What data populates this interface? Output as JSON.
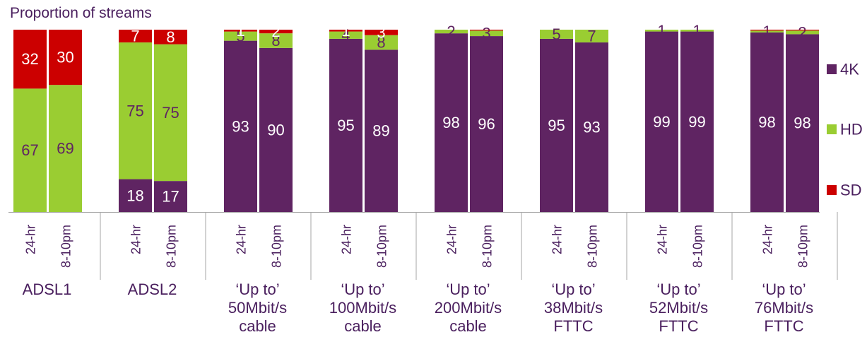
{
  "chart_data": {
    "type": "bar",
    "stacked": true,
    "title": "Proportion of streams",
    "ylim": [
      0,
      100
    ],
    "legend_position": "right",
    "colors": {
      "4K": "#5f2462",
      "HD": "#9acd32",
      "SD": "#cc0000"
    },
    "label_colors": {
      "4K": "#ffffff",
      "HD": "#5f2462",
      "SD": "#ffffff"
    },
    "groups": [
      {
        "label_lines": [
          "ADSL1"
        ],
        "bars": [
          {
            "tick": "24-hr",
            "4K": 0,
            "HD": 67,
            "SD": 32,
            "labels": {
              "4K": "",
              "HD": "67",
              "SD": "32"
            }
          },
          {
            "tick": "8-10pm",
            "4K": 0,
            "HD": 69,
            "SD": 30,
            "labels": {
              "4K": "",
              "HD": "69",
              "SD": "30"
            }
          }
        ]
      },
      {
        "label_lines": [
          "ADSL2"
        ],
        "bars": [
          {
            "tick": "24-hr",
            "4K": 18,
            "HD": 75,
            "SD": 7,
            "labels": {
              "4K": "18",
              "HD": "75",
              "SD": "7"
            }
          },
          {
            "tick": "8-10pm",
            "4K": 17,
            "HD": 75,
            "SD": 8,
            "labels": {
              "4K": "17",
              "HD": "75",
              "SD": "8"
            }
          }
        ]
      },
      {
        "label_lines": [
          "‘Up to’",
          "50Mbit/s",
          "cable"
        ],
        "bars": [
          {
            "tick": "24-hr",
            "4K": 93,
            "HD": 5,
            "SD": 1,
            "labels": {
              "4K": "93",
              "HD": "5",
              "SD": "1"
            }
          },
          {
            "tick": "8-10pm",
            "4K": 90,
            "HD": 8,
            "SD": 2,
            "labels": {
              "4K": "90",
              "HD": "8",
              "SD": "2"
            }
          }
        ]
      },
      {
        "label_lines": [
          "‘Up to’",
          "100Mbit/s",
          "cable"
        ],
        "bars": [
          {
            "tick": "24-hr",
            "4K": 95,
            "HD": 4,
            "SD": 1,
            "labels": {
              "4K": "95",
              "HD": "4",
              "SD": "1"
            }
          },
          {
            "tick": "8-10pm",
            "4K": 89,
            "HD": 8,
            "SD": 3,
            "labels": {
              "4K": "89",
              "HD": "8",
              "SD": "3"
            }
          }
        ]
      },
      {
        "label_lines": [
          "‘Up to’",
          "200Mbit/s",
          "cable"
        ],
        "bars": [
          {
            "tick": "24-hr",
            "4K": 98,
            "HD": 2,
            "SD": 0,
            "labels": {
              "4K": "98",
              "HD": "2",
              "SD": ""
            }
          },
          {
            "tick": "8-10pm",
            "4K": 96,
            "HD": 3,
            "SD": 0.5,
            "labels": {
              "4K": "96",
              "HD": "3",
              "SD": ""
            }
          }
        ]
      },
      {
        "label_lines": [
          "‘Up to’",
          "38Mbit/s",
          "FTTC"
        ],
        "bars": [
          {
            "tick": "24-hr",
            "4K": 95,
            "HD": 5,
            "SD": 0,
            "labels": {
              "4K": "95",
              "HD": "5",
              "SD": ""
            }
          },
          {
            "tick": "8-10pm",
            "4K": 93,
            "HD": 7,
            "SD": 0,
            "labels": {
              "4K": "93",
              "HD": "7",
              "SD": ""
            }
          }
        ]
      },
      {
        "label_lines": [
          "‘Up to’",
          "52Mbit/s",
          "FTTC"
        ],
        "bars": [
          {
            "tick": "24-hr",
            "4K": 99,
            "HD": 1,
            "SD": 0,
            "labels": {
              "4K": "99",
              "HD": "1",
              "SD": ""
            }
          },
          {
            "tick": "8-10pm",
            "4K": 99,
            "HD": 1,
            "SD": 0,
            "labels": {
              "4K": "99",
              "HD": "1",
              "SD": ""
            }
          }
        ]
      },
      {
        "label_lines": [
          "‘Up to’",
          "76Mbit/s",
          "FTTC"
        ],
        "bars": [
          {
            "tick": "24-hr",
            "4K": 98,
            "HD": 1,
            "SD": 0.5,
            "labels": {
              "4K": "98",
              "HD": "1",
              "SD": ""
            }
          },
          {
            "tick": "8-10pm",
            "4K": 98,
            "HD": 2,
            "SD": 0.5,
            "labels": {
              "4K": "98",
              "HD": "2",
              "SD": ""
            }
          }
        ]
      }
    ],
    "legend": [
      {
        "key": "4K",
        "label": "4K"
      },
      {
        "key": "HD",
        "label": "HD"
      },
      {
        "key": "SD",
        "label": "SD"
      }
    ]
  }
}
